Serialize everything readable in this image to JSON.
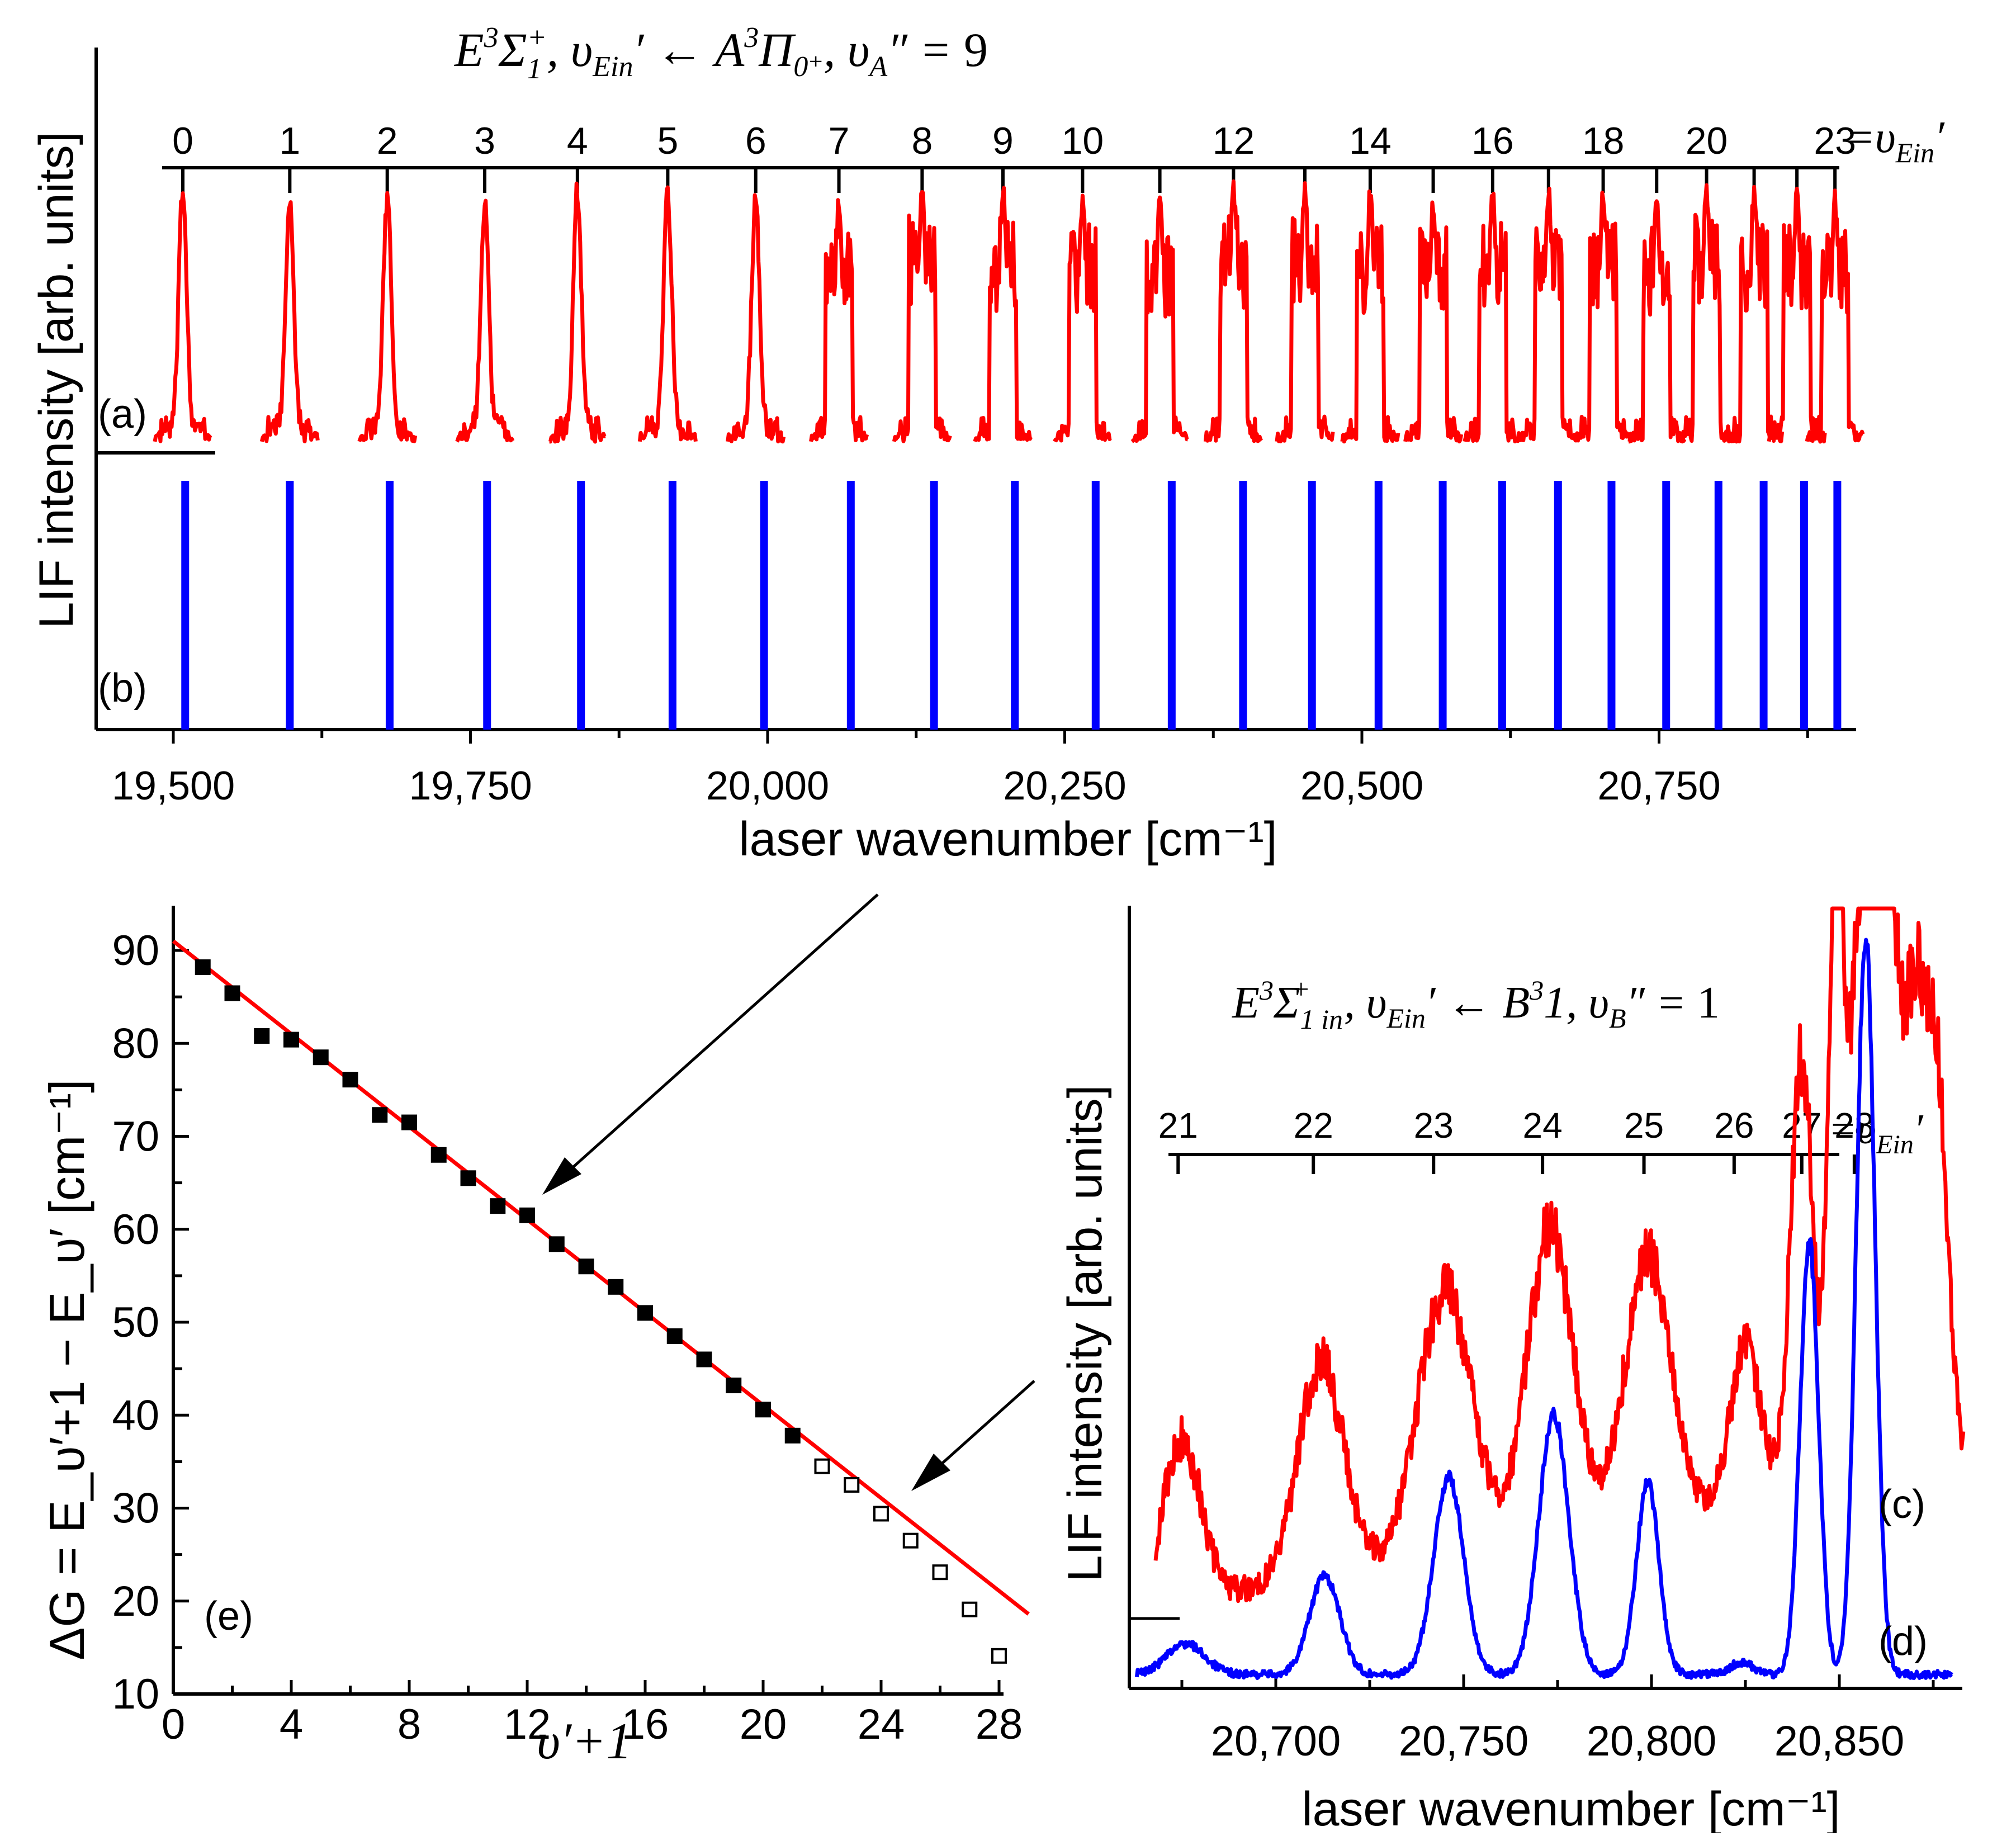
{
  "chart_data": [
    {
      "id": "a",
      "type": "line",
      "panel_label": "(a)",
      "title": "E³Σ₁⁺, υ_Ein′ ← A³Π₀⁺, υ_A″ = 9",
      "ylabel": "LIF intensity [arb. units]",
      "xlabel": "laser wavenumber [cm⁻¹]",
      "xlim": [
        19470,
        20960
      ],
      "x_ticks": [
        19500,
        19750,
        20000,
        20250,
        20500,
        20750
      ],
      "x_tick_labels": [
        "19,500",
        "19,750",
        "20,000",
        "20,250",
        "20,500",
        "20,750"
      ],
      "vibrational_assignment": {
        "label": "= υ_Ein′",
        "levels": [
          0,
          1,
          2,
          3,
          4,
          5,
          6,
          7,
          8,
          9,
          10,
          11,
          12,
          13,
          14,
          15,
          16,
          17,
          18,
          19,
          20,
          21,
          22,
          23
        ],
        "printed_labels": [
          "0",
          "1",
          "2",
          "3",
          "4",
          "5",
          "6",
          "7",
          "8",
          "9",
          "10",
          "12",
          "14",
          "16",
          "18",
          "20",
          "23"
        ],
        "positions": [
          19508,
          19598,
          19680,
          19762,
          19840,
          19916,
          19990,
          20060,
          20130,
          20198,
          20265,
          20330,
          20392,
          20452,
          20507,
          20560,
          20610,
          20657,
          20703,
          20748,
          20790,
          20830,
          20866,
          20898
        ]
      },
      "peaks": {
        "color": "#ff0000",
        "x": [
          19508,
          19598,
          19680,
          19762,
          19840,
          19916,
          19990,
          20060,
          20130,
          20198,
          20265,
          20330,
          20392,
          20452,
          20507,
          20560,
          20610,
          20657,
          20703,
          20748,
          20790,
          20830,
          20866,
          20898
        ]
      }
    },
    {
      "id": "b",
      "type": "bar",
      "panel_label": "(b)",
      "color": "#0000ff",
      "x": [
        19510,
        19598,
        19682,
        19764,
        19843,
        19920,
        19997,
        20070,
        20140,
        20208,
        20276,
        20340,
        20400,
        20458,
        20514,
        20568,
        20618,
        20665,
        20710,
        20756,
        20800,
        20838,
        20872,
        20900
      ]
    },
    {
      "id": "e",
      "type": "scatter",
      "panel_label": "(e)",
      "xlabel": "υ′+1",
      "ylabel": "ΔG = E_υ′+1 − E_υ′  [cm⁻¹]",
      "xlim": [
        0,
        29
      ],
      "ylim": [
        10,
        95
      ],
      "x_ticks": [
        0,
        4,
        8,
        12,
        16,
        20,
        24,
        28
      ],
      "y_ticks": [
        10,
        20,
        30,
        40,
        50,
        60,
        70,
        80,
        90
      ],
      "series": [
        {
          "marker": "filled-square",
          "x": [
            1,
            2,
            3,
            4,
            5,
            6,
            7,
            8,
            9,
            10,
            11,
            12,
            13,
            14,
            15,
            16,
            17,
            18,
            19,
            20,
            21
          ],
          "y": [
            88.2,
            85.4,
            80.8,
            80.4,
            78.5,
            76.1,
            72.3,
            71.5,
            68.0,
            65.5,
            62.5,
            61.5,
            58.4,
            56.0,
            53.8,
            51.0,
            48.5,
            46.0,
            43.2,
            40.6,
            37.8
          ]
        },
        {
          "marker": "open-square",
          "x": [
            22,
            23,
            24,
            25,
            26,
            27,
            28
          ],
          "y": [
            34.5,
            32.5,
            29.4,
            26.5,
            23.1,
            19.1,
            14.1
          ]
        }
      ],
      "fit_line": {
        "color": "#ff0000",
        "x": [
          0,
          29
        ],
        "y": [
          91.0,
          18.6
        ]
      }
    },
    {
      "id": "cd",
      "type": "line",
      "panel_labels": [
        "(c)",
        "(d)"
      ],
      "title": "E³Σ₁⁺ in, υ_Ein′ ← B³1, υ_B″ = 1",
      "ylabel": "LIF intensity [arb. units]",
      "xlabel": "laser wavenumber [cm⁻¹]",
      "xlim": [
        20660,
        20884
      ],
      "x_ticks": [
        20700,
        20750,
        20800,
        20850
      ],
      "x_tick_labels": [
        "20,700",
        "20,750",
        "20,800",
        "20,850"
      ],
      "vibrational_assignment": {
        "label": "= υ_Ein′",
        "levels": [
          "21",
          "22",
          "23",
          "24",
          "25",
          "26",
          "27",
          "28"
        ],
        "positions": [
          20674,
          20710,
          20742,
          20771,
          20798,
          20822,
          20840,
          20854
        ]
      },
      "series": [
        {
          "name": "(c)",
          "color": "#ff0000",
          "peaks": [
            {
              "x": 20675,
              "h": 0.3,
              "w": 5
            },
            {
              "x": 20712,
              "h": 0.4,
              "w": 6
            },
            {
              "x": 20745,
              "h": 0.5,
              "w": 7
            },
            {
              "x": 20773,
              "h": 0.58,
              "w": 6
            },
            {
              "x": 20799,
              "h": 0.5,
              "w": 6
            },
            {
              "x": 20825,
              "h": 0.3,
              "w": 4
            },
            {
              "x": 20840,
              "h": 0.82,
              "w": 3
            },
            {
              "x": 20849,
              "h": 1.1,
              "w": 2
            },
            {
              "x": 20857,
              "h": 1.2,
              "w": 4
            },
            {
              "x": 20863,
              "h": 0.85,
              "w": 3
            },
            {
              "x": 20870,
              "h": 0.8,
              "w": 3
            },
            {
              "x": 20876,
              "h": 0.7,
              "w": 3
            }
          ]
        },
        {
          "name": "(d)",
          "color": "#0000ff",
          "peaks": [
            {
              "x": 20676,
              "h": 0.05,
              "w": 5
            },
            {
              "x": 20713,
              "h": 0.16,
              "w": 4
            },
            {
              "x": 20746,
              "h": 0.32,
              "w": 4
            },
            {
              "x": 20774,
              "h": 0.42,
              "w": 4
            },
            {
              "x": 20799,
              "h": 0.31,
              "w": 3
            },
            {
              "x": 20824,
              "h": 0.02,
              "w": 3
            },
            {
              "x": 20842,
              "h": 0.7,
              "w": 2.5
            },
            {
              "x": 20857,
              "h": 1.2,
              "w": 2.5
            }
          ]
        }
      ]
    }
  ]
}
